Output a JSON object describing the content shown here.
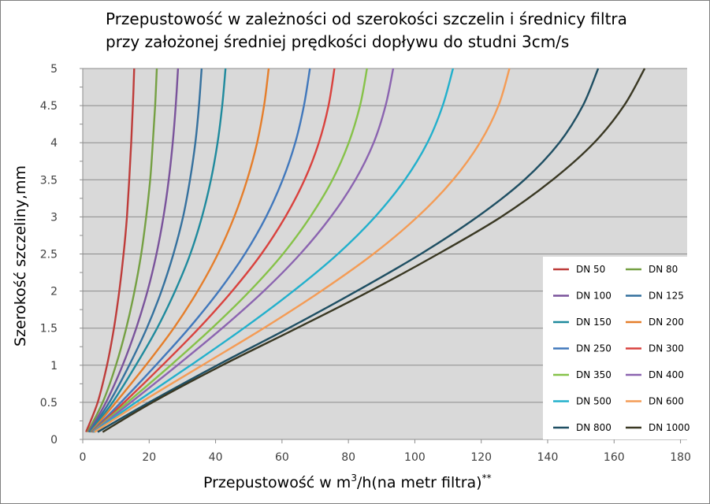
{
  "chart_data": {
    "type": "line",
    "title": "Przepustowość w zależności od szerokości szczelin i średnicy filtra",
    "subtitle": "przy założonej średniej prędkości dopływu do studni 3cm/s",
    "xlabel_main": "Przepustowość w m",
    "xlabel_sup1": "3",
    "xlabel_rest": "/h(na metr filtra)",
    "xlabel_sup2": "**",
    "ylabel": "Szerokość  szczeliny,mm",
    "xlim": [
      0,
      182
    ],
    "ylim": [
      0,
      5
    ],
    "x_ticks": [
      "0",
      "20",
      "40",
      "60",
      "80",
      "100",
      "120",
      "140",
      "160",
      "180"
    ],
    "y_ticks": [
      "0",
      "0.5",
      "1",
      "1.5",
      "2",
      "2.5",
      "3",
      "3.5",
      "4",
      "4.5",
      "5"
    ],
    "plot_background": "#d9d9d9",
    "grid": "horizontal",
    "legend_position": "bottom-right",
    "y_samples": [
      0.1,
      0.5,
      1,
      1.5,
      2,
      2.5,
      3,
      3.5,
      4,
      4.5,
      5
    ],
    "series": [
      {
        "name": "DN 50",
        "color": "#be3c3a",
        "x": [
          1.0,
          4.5,
          7.3,
          9.4,
          11.0,
          12.3,
          13.3,
          14.0,
          14.6,
          15.1,
          15.5
        ]
      },
      {
        "name": "DN 80",
        "color": "#75a043",
        "x": [
          1.5,
          6.0,
          10.0,
          13.1,
          15.6,
          17.6,
          19.1,
          20.3,
          21.1,
          21.8,
          22.3
        ]
      },
      {
        "name": "DN 100",
        "color": "#7a539b",
        "x": [
          1.8,
          7.0,
          12.0,
          16.1,
          19.5,
          22.2,
          24.3,
          25.9,
          27.1,
          28.0,
          28.7
        ]
      },
      {
        "name": "DN 125",
        "color": "#35719e",
        "x": [
          2.0,
          8.0,
          14.0,
          19.3,
          23.7,
          27.3,
          30.2,
          32.3,
          33.9,
          35.0,
          35.8
        ]
      },
      {
        "name": "DN 150",
        "color": "#1f8a9d",
        "x": [
          2.2,
          9.0,
          16.0,
          22.4,
          27.8,
          32.4,
          35.9,
          38.6,
          40.6,
          42.0,
          43.0
        ]
      },
      {
        "name": "DN 200",
        "color": "#e57e2b",
        "x": [
          2.5,
          10.0,
          19.0,
          27.4,
          34.6,
          40.7,
          45.6,
          49.5,
          52.5,
          54.6,
          56.0
        ]
      },
      {
        "name": "DN 250",
        "color": "#4178bc",
        "x": [
          2.7,
          11.5,
          22.0,
          32.0,
          41.0,
          48.8,
          55.2,
          60.2,
          64.0,
          66.6,
          68.4
        ]
      },
      {
        "name": "DN 300",
        "color": "#d9423e",
        "x": [
          2.9,
          12.5,
          24.0,
          35.0,
          45.0,
          53.8,
          61.0,
          66.8,
          71.1,
          74.0,
          75.8
        ]
      },
      {
        "name": "DN 350",
        "color": "#86c249",
        "x": [
          3.0,
          13.5,
          26.5,
          38.9,
          50.3,
          60.3,
          68.5,
          75.2,
          80.1,
          83.5,
          85.6
        ]
      },
      {
        "name": "DN 400",
        "color": "#8b64b0",
        "x": [
          3.1,
          14.5,
          28.5,
          42.0,
          54.5,
          65.5,
          74.7,
          82.1,
          87.6,
          91.2,
          93.5
        ]
      },
      {
        "name": "DN 500",
        "color": "#22b0cc",
        "x": [
          3.3,
          16.0,
          32.5,
          48.5,
          63.4,
          76.8,
          88.0,
          97.0,
          103.8,
          108.4,
          111.5
        ]
      },
      {
        "name": "DN 600",
        "color": "#f49c56",
        "x": [
          3.5,
          17.5,
          36.0,
          54.5,
          71.8,
          87.5,
          100.8,
          111.5,
          119.6,
          125.2,
          128.5
        ]
      },
      {
        "name": "DN 800",
        "color": "#1f4f63",
        "x": [
          4.5,
          20.0,
          40.5,
          62.0,
          82.5,
          101.8,
          118.8,
          133.0,
          143.5,
          150.6,
          155.2
        ]
      },
      {
        "name": "DN 1000",
        "color": "#3a3823",
        "x": [
          6.0,
          21.0,
          42.0,
          64.5,
          86.5,
          107.0,
          126.0,
          141.5,
          154.0,
          163.0,
          169.2
        ]
      }
    ]
  }
}
